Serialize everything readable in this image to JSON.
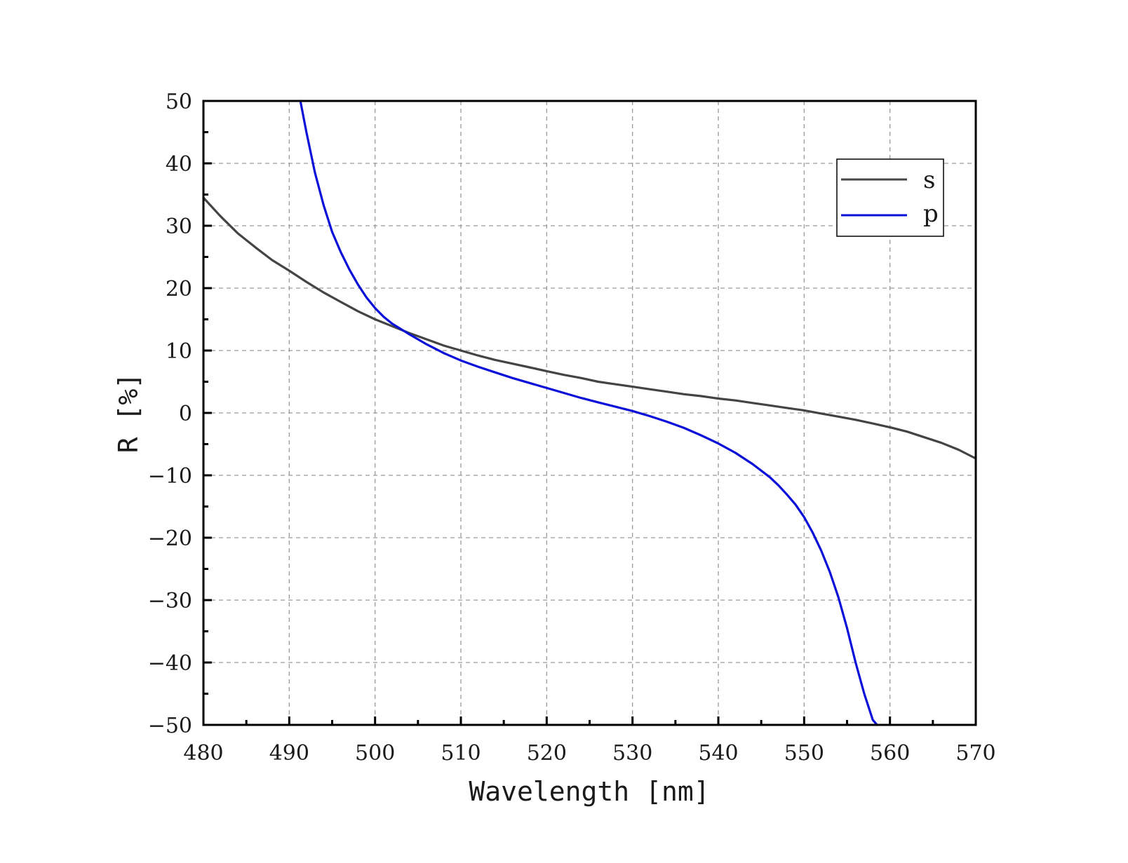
{
  "chart_data": {
    "type": "line",
    "xlabel": "Wavelength [nm]",
    "ylabel": "R [%]",
    "xlim": [
      480,
      570
    ],
    "ylim": [
      -50,
      50
    ],
    "xticks": [
      480,
      490,
      500,
      510,
      520,
      530,
      540,
      550,
      560,
      570
    ],
    "yticks": [
      50,
      40,
      30,
      20,
      10,
      0,
      -10,
      -20,
      -30,
      -40,
      -50
    ],
    "grid": true,
    "legend_position": "top-right",
    "series": [
      {
        "name": "s",
        "color": "#444444",
        "x": [
          480,
          482,
          484,
          486,
          488,
          490,
          492,
          494,
          496,
          498,
          500,
          502,
          504,
          506,
          508,
          510,
          512,
          514,
          516,
          518,
          520,
          522,
          524,
          526,
          528,
          530,
          532,
          534,
          536,
          538,
          540,
          542,
          544,
          546,
          548,
          550,
          552,
          554,
          556,
          558,
          560,
          562,
          564,
          566,
          568,
          570
        ],
        "y": [
          34.5,
          31.5,
          28.8,
          26.6,
          24.5,
          22.8,
          21.0,
          19.3,
          17.8,
          16.3,
          15.0,
          13.9,
          12.8,
          11.8,
          10.8,
          10.0,
          9.2,
          8.5,
          7.9,
          7.3,
          6.7,
          6.1,
          5.6,
          5.0,
          4.6,
          4.2,
          3.8,
          3.4,
          3.0,
          2.7,
          2.3,
          2.0,
          1.6,
          1.2,
          0.8,
          0.4,
          -0.1,
          -0.6,
          -1.1,
          -1.7,
          -2.3,
          -3.0,
          -3.9,
          -4.8,
          -5.9,
          -7.3
        ]
      },
      {
        "name": "p",
        "color": "#0a10d8",
        "x": [
          491.3,
          492,
          493,
          494,
          495,
          496,
          497,
          498,
          499,
          500,
          501,
          502,
          504,
          506,
          508,
          510,
          512,
          514,
          516,
          518,
          520,
          522,
          524,
          526,
          528,
          530,
          532,
          534,
          536,
          538,
          540,
          542,
          544,
          546,
          547,
          548,
          549,
          550,
          551,
          552,
          553,
          554,
          555,
          556,
          557,
          558,
          558.5
        ],
        "y": [
          50,
          45,
          38.5,
          33.3,
          29.0,
          25.8,
          23.0,
          20.6,
          18.5,
          16.8,
          15.4,
          14.3,
          12.6,
          11.0,
          9.6,
          8.4,
          7.4,
          6.5,
          5.6,
          4.8,
          4.0,
          3.2,
          2.4,
          1.7,
          1.0,
          0.3,
          -0.5,
          -1.4,
          -2.4,
          -3.6,
          -4.9,
          -6.4,
          -8.2,
          -10.3,
          -11.6,
          -13.1,
          -14.7,
          -16.7,
          -19.2,
          -22.1,
          -25.5,
          -29.6,
          -34.5,
          -40.0,
          -45.0,
          -49.2,
          -50
        ]
      }
    ]
  }
}
